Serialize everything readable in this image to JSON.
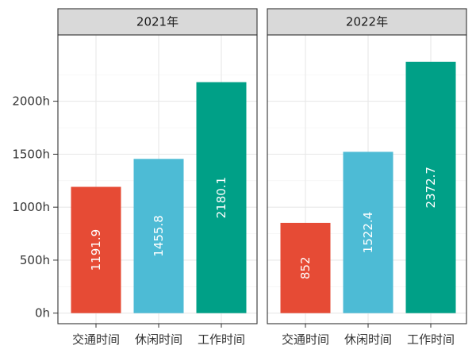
{
  "chart_data": {
    "type": "bar",
    "y_unit_suffix": "h",
    "ylim": [
      0,
      2500
    ],
    "y_ticks": [
      0,
      500,
      1000,
      1500,
      2000
    ],
    "y_tick_labels": [
      "0h",
      "500h",
      "1000h",
      "1500h",
      "2000h"
    ],
    "grid": true,
    "categories": [
      "交通时间",
      "休闲时间",
      "工作时间"
    ],
    "colors": [
      "#e64b35",
      "#4dbbd5",
      "#00a087"
    ],
    "panels": [
      {
        "title": "2021年",
        "values": [
          1191.9,
          1455.8,
          2180.1
        ],
        "labels": [
          "1191.9",
          "1455.8",
          "2180.1"
        ]
      },
      {
        "title": "2022年",
        "values": [
          852,
          1522.4,
          2372.7
        ],
        "labels": [
          "852",
          "1522.4",
          "2372.7"
        ]
      }
    ]
  }
}
